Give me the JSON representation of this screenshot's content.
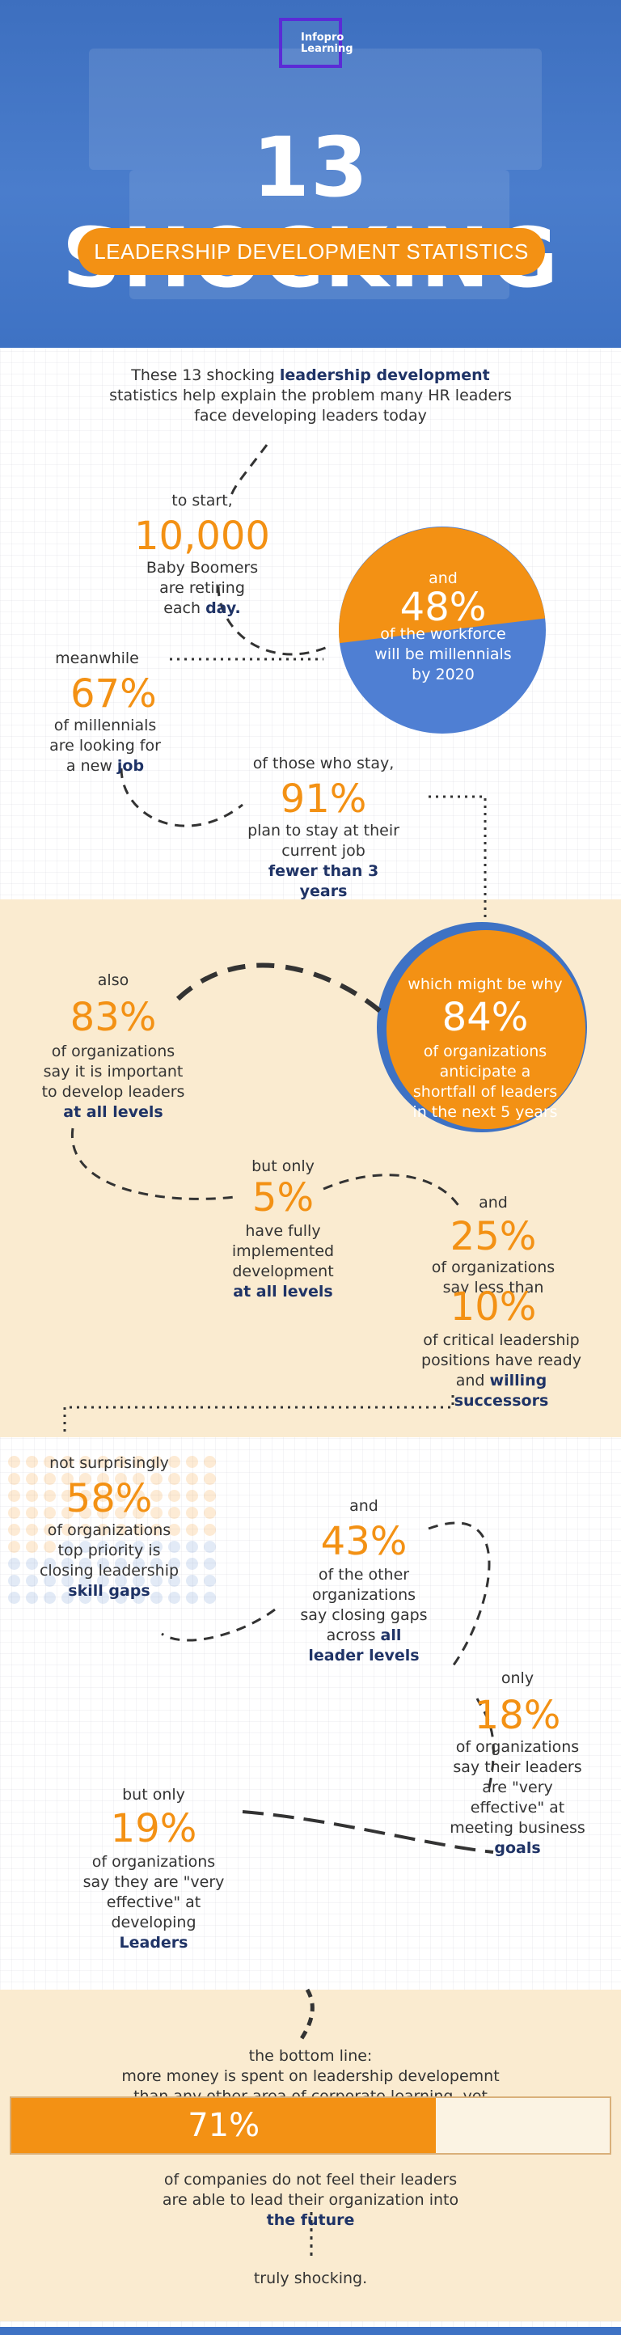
{
  "header": {
    "logo_line1": "Infopro",
    "logo_line2": "Learning",
    "title": "13 SHOCKING",
    "subtitle": "LEADERSHIP DEVELOPMENT STATISTICS"
  },
  "intro": {
    "line1_pre": "These 13 shocking ",
    "line1_highlight": "leadership development",
    "line2": "statistics help explain the problem many HR leaders",
    "line3": "face developing leaders today"
  },
  "stats": {
    "s1": {
      "lead": "to start,",
      "value": "10,000",
      "text": "Baby Boomers are retiring each",
      "highlight": "day."
    },
    "s2": {
      "lead": "and",
      "value": "48%",
      "text": "of the workforce will be millennials by 2020",
      "slice_fraction": 0.48
    },
    "s3": {
      "lead": "meanwhile",
      "value": "67%",
      "text": "of millennials are looking for a new",
      "highlight": "job"
    },
    "s4": {
      "lead": "of those who stay,",
      "value": "91%",
      "text": "plan to stay at their current job",
      "highlight": "fewer than 3 years"
    },
    "s5": {
      "lead": "which might be why",
      "value": "84%",
      "text": "of organizations anticipate a shortfall of leaders in the next 5 years"
    },
    "s6": {
      "lead": "also",
      "value": "83%",
      "text": "of organizations say it is important to develop leaders",
      "highlight": "at all levels"
    },
    "s7": {
      "lead": "but only",
      "value": "5%",
      "text": "have fully implemented development",
      "highlight": "at all levels"
    },
    "s8": {
      "lead": "and",
      "value": "25%",
      "text": "of organizations say less than"
    },
    "s9": {
      "value": "10%",
      "text": "of critical leadership positions have ready and",
      "highlight": "willing successors"
    },
    "s10": {
      "lead": "not surprisingly",
      "value": "58%",
      "text": "of organizations top priority is closing leadership",
      "highlight": "skill gaps"
    },
    "s11": {
      "lead": "and",
      "value": "43%",
      "text": "of the other organizations say closing gaps across",
      "highlight": "all leader levels"
    },
    "s12": {
      "lead": "only",
      "value": "18%",
      "text": "of organizations say their leaders are \"very effective\" at meeting business",
      "highlight": "goals"
    },
    "s13": {
      "lead": "but only",
      "value": "19%",
      "text": "of organizations say they are \"very effective\" at developing",
      "highlight": "Leaders"
    }
  },
  "bottom": {
    "lead": "the bottom line:",
    "line1": "more money is spent on leadership developemnt",
    "line2": "than any other area of corporate learning, yet",
    "bar_value": "71%",
    "bar_fraction": 0.71,
    "after1": "of companies do not feel their leaders",
    "after2": "are able to lead their organization into",
    "highlight": "the future",
    "closing": "truly shocking."
  },
  "colors": {
    "accent": "#f39114",
    "blue": "#3e72c4",
    "navy": "#1f3366",
    "cream": "#faebd0"
  }
}
